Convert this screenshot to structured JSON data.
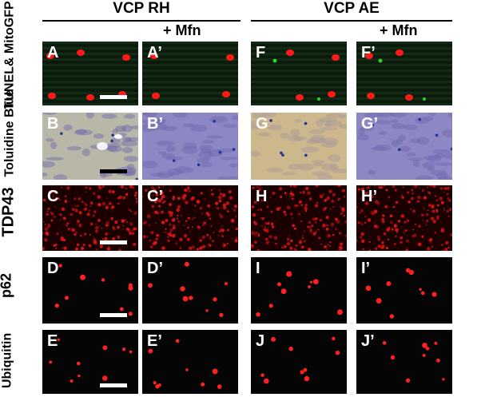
{
  "groups": [
    {
      "title": "VCP RH"
    },
    {
      "title": "VCP AE"
    }
  ],
  "col_labels": [
    "+ Mfn",
    "+ Mfn"
  ],
  "row_labels": [
    "TUNEL& MitoGFP",
    "Toluidine Blue",
    "TDP43",
    "p62",
    "Ubiquitin"
  ],
  "panels": [
    [
      "A",
      "A’",
      "F",
      "F’"
    ],
    [
      "B",
      "B’",
      "G",
      "G’"
    ],
    [
      "C",
      "C’",
      "H",
      "H’"
    ],
    [
      "D",
      "D’",
      "I",
      "I’"
    ],
    [
      "E",
      "E’",
      "J",
      "J’"
    ]
  ],
  "colors": {
    "tunel_bg": "#0c1a0c",
    "tunel_nuclei": "#ff1a1a",
    "mito_green": "#2bd12b",
    "toluidine_rh_bg": "#b9b7a7",
    "toluidine_mfn_bg": "#8d88c4",
    "toluidine_ae_bg": "#cdb78c",
    "tdp43_red": "#e01414",
    "stain_black": "#050505",
    "scale_white": "#ffffff",
    "scale_black": "#000000"
  }
}
